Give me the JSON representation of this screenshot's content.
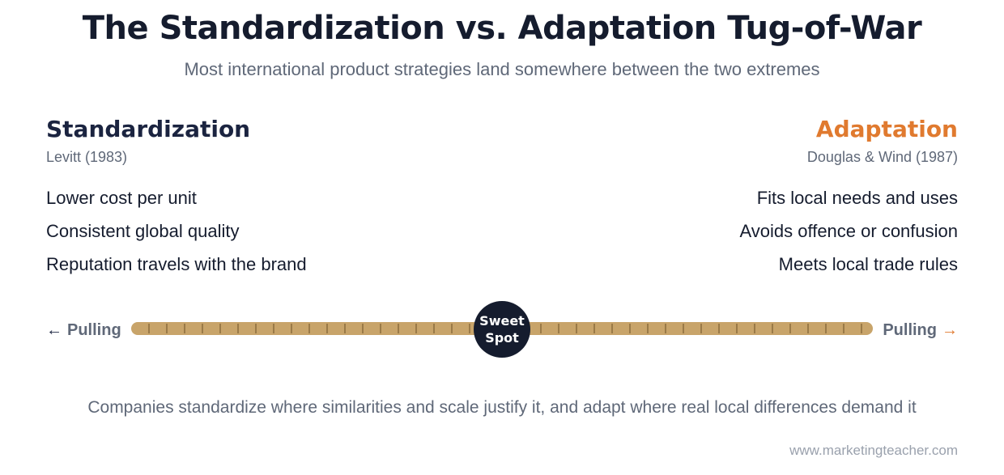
{
  "title": "The Standardization vs. Adaptation Tug-of-War",
  "subtitle": "Most international product strategies land somewhere between the two extremes",
  "left": {
    "heading": "Standardization",
    "citation": "Levitt (1983)",
    "points": [
      "Lower cost per unit",
      "Consistent global quality",
      "Reputation travels with the brand"
    ],
    "pull_label": "Pulling",
    "arrow": "←",
    "color": "#1b2440"
  },
  "right": {
    "heading": "Adaptation",
    "citation": "Douglas & Wind (1987)",
    "points": [
      "Fits local needs and uses",
      "Avoids offence or confusion",
      "Meets local trade rules"
    ],
    "pull_label": "Pulling",
    "arrow": "→",
    "color": "#e07a2f"
  },
  "center": {
    "line1": "Sweet",
    "line2": "Spot"
  },
  "rope_color": "#c8a46a",
  "conclusion": "Companies standardize where similarities and scale justify it, and adapt where real local differences demand it",
  "source": "www.marketingteacher.com"
}
